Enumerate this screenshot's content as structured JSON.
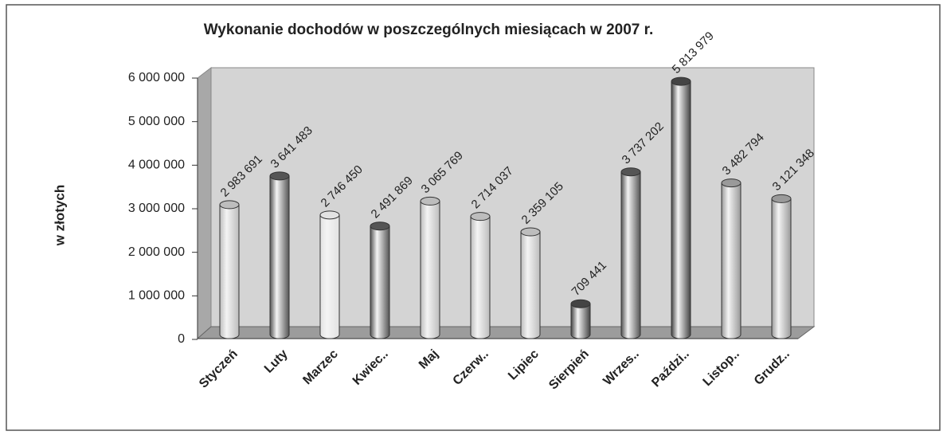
{
  "chart_data": {
    "type": "bar",
    "title": "Wykonanie dochodów w poszczególnych miesiącach w  2007 r.",
    "y_label": "w złotych",
    "categories": [
      "Styczeń",
      "Luty",
      "Marzec",
      "Kwiec..",
      "Maj",
      "Czerw..",
      "Lipiec",
      "Sierpień",
      "Wrzes..",
      "Paździ..",
      "Listop..",
      "Grudz.."
    ],
    "values": [
      2983691,
      3641483,
      2746450,
      2491869,
      3065769,
      2714037,
      2359105,
      709441,
      3737202,
      5813979,
      3482794,
      3121348
    ],
    "value_labels": [
      "2 983 691",
      "3 641 483",
      "2 746 450",
      "2 491 869",
      "3 065 769",
      "2 714 037",
      "2 359 105",
      "709 441",
      "3 737 202",
      "5 813 979",
      "3 482 794",
      "3 121 348"
    ],
    "colors": [
      "#bdbdbd",
      "#555555",
      "#e2e2e2",
      "#555555",
      "#bdbdbd",
      "#bdbdbd",
      "#bdbdbd",
      "#444444",
      "#555555",
      "#444444",
      "#9a9a9a",
      "#9a9a9a"
    ],
    "ylim": [
      0,
      6000000
    ],
    "yticks": [
      0,
      {
        "value": 1000000,
        "label": "1 000 000"
      },
      {
        "value": 2000000,
        "label": "2 000 000"
      },
      {
        "value": 3000000,
        "label": "3 000 000"
      },
      {
        "value": 4000000,
        "label": "4 000 000"
      },
      {
        "value": 5000000,
        "label": "5 000 000"
      },
      {
        "value": 6000000,
        "label": "6 000 000"
      }
    ]
  }
}
